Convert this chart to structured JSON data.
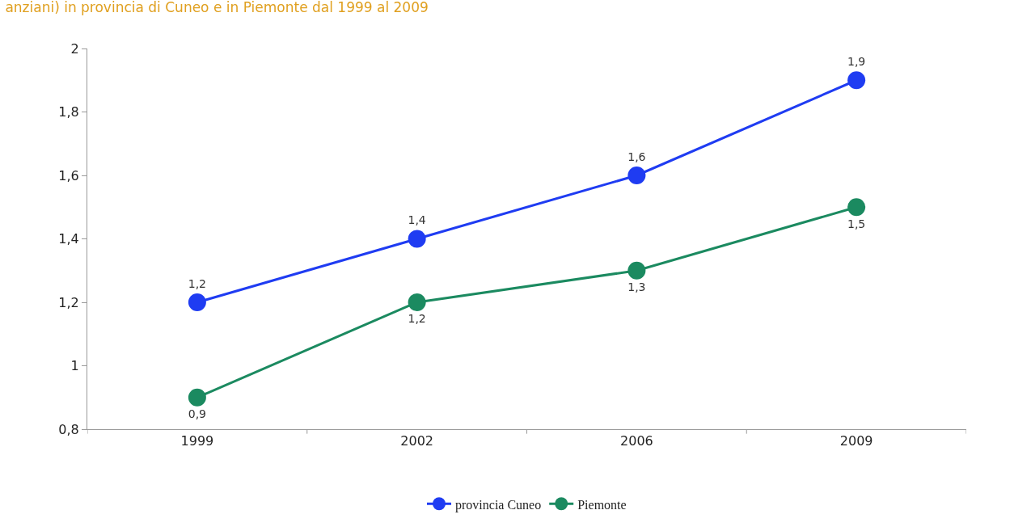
{
  "chart_data": {
    "type": "line",
    "title": "anziani) in provincia di Cuneo e in Piemonte dal 1999 al 2009",
    "categories": [
      "1999",
      "2002",
      "2006",
      "2009"
    ],
    "series": [
      {
        "name": "provincia Cuneo",
        "color": "#1f3cf2",
        "values": [
          1.2,
          1.4,
          1.6,
          1.9
        ],
        "value_labels": [
          "1,2",
          "1,4",
          "1,6",
          "1,9"
        ]
      },
      {
        "name": "Piemonte",
        "color": "#1b8a60",
        "values": [
          0.9,
          1.2,
          1.3,
          1.5
        ],
        "value_labels": [
          "0,9",
          "1,2",
          "1,3",
          "1,5"
        ]
      }
    ],
    "ylim": [
      0.8,
      2
    ],
    "yticks": [
      {
        "value": 0.8,
        "label": "0,8"
      },
      1,
      {
        "value": 1.2,
        "label": "1,2"
      },
      {
        "value": 1.4,
        "label": "1,4"
      },
      {
        "value": 1.6,
        "label": "1,6"
      },
      {
        "value": 1.8,
        "label": "1,8"
      },
      2
    ],
    "marker": "circle",
    "line_style": "solid",
    "legend": "bottom"
  }
}
